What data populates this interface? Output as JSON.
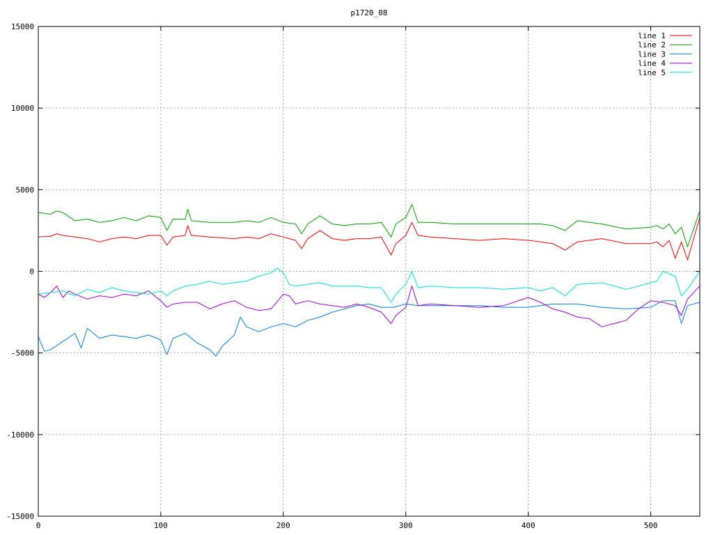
{
  "chart_data": {
    "type": "line",
    "title": "p1720_08",
    "xlim": [
      0,
      540
    ],
    "ylim": [
      -15000,
      15000
    ],
    "x_ticks": [
      0,
      100,
      200,
      300,
      400,
      500
    ],
    "y_ticks": [
      -15000,
      -10000,
      -5000,
      0,
      5000,
      10000,
      15000
    ],
    "x_tick_labels": [
      "0",
      "100",
      "200",
      "300",
      "400",
      "500"
    ],
    "y_tick_labels": [
      "-15000",
      "-10000",
      "-5000",
      "0",
      "5000",
      "10000",
      "15000"
    ],
    "grid": true,
    "legend_position": "top-right",
    "series": [
      {
        "name": "line 1",
        "color": "#ff0000",
        "x": [
          0,
          10,
          15,
          20,
          30,
          40,
          50,
          60,
          70,
          80,
          90,
          100,
          105,
          110,
          120,
          122,
          125,
          140,
          160,
          170,
          180,
          190,
          200,
          210,
          215,
          220,
          230,
          240,
          250,
          260,
          270,
          280,
          288,
          292,
          300,
          305,
          310,
          320,
          340,
          360,
          380,
          400,
          410,
          420,
          430,
          440,
          460,
          480,
          500,
          505,
          510,
          515,
          520,
          525,
          530,
          540
        ],
        "values": [
          2100,
          2150,
          2300,
          2200,
          2100,
          2000,
          1800,
          2000,
          2100,
          2000,
          2200,
          2200,
          1600,
          2100,
          2200,
          2800,
          2200,
          2100,
          2000,
          2100,
          2000,
          2300,
          2100,
          1900,
          1400,
          2000,
          2500,
          2000,
          1900,
          2000,
          2000,
          2100,
          1000,
          1700,
          2200,
          3000,
          2200,
          2100,
          2000,
          1900,
          2000,
          1900,
          1800,
          1700,
          1300,
          1800,
          2000,
          1700,
          1700,
          1800,
          1500,
          1900,
          800,
          1800,
          700,
          3300
        ]
      },
      {
        "name": "line 2",
        "color": "#00a000",
        "x": [
          0,
          10,
          15,
          20,
          30,
          40,
          50,
          60,
          70,
          80,
          90,
          100,
          105,
          110,
          120,
          122,
          125,
          140,
          160,
          170,
          180,
          190,
          200,
          210,
          215,
          220,
          230,
          240,
          250,
          260,
          270,
          280,
          288,
          292,
          300,
          305,
          310,
          320,
          340,
          360,
          380,
          400,
          410,
          420,
          430,
          440,
          460,
          480,
          500,
          505,
          510,
          515,
          520,
          525,
          530,
          540
        ],
        "values": [
          3600,
          3500,
          3700,
          3600,
          3100,
          3200,
          3000,
          3100,
          3300,
          3100,
          3400,
          3300,
          2500,
          3200,
          3200,
          3800,
          3100,
          3000,
          3000,
          3100,
          3000,
          3300,
          3000,
          2900,
          2300,
          2900,
          3400,
          2900,
          2800,
          2900,
          2900,
          3000,
          2100,
          2900,
          3300,
          4100,
          3000,
          3000,
          2900,
          2900,
          2900,
          2900,
          2900,
          2800,
          2500,
          3100,
          2900,
          2600,
          2700,
          2800,
          2600,
          2900,
          2300,
          2700,
          1500,
          3700
        ]
      },
      {
        "name": "line 3",
        "color": "#0080e0",
        "x": [
          0,
          5,
          10,
          20,
          30,
          35,
          40,
          50,
          60,
          70,
          80,
          90,
          100,
          105,
          110,
          120,
          130,
          140,
          145,
          150,
          160,
          165,
          170,
          180,
          190,
          200,
          210,
          220,
          230,
          240,
          250,
          260,
          270,
          280,
          290,
          300,
          310,
          320,
          340,
          360,
          380,
          400,
          420,
          440,
          460,
          480,
          500,
          510,
          520,
          525,
          530,
          540
        ],
        "values": [
          -4000,
          -4900,
          -4800,
          -4300,
          -3800,
          -4700,
          -3500,
          -4100,
          -3900,
          -4000,
          -4100,
          -3900,
          -4200,
          -5100,
          -4100,
          -3800,
          -4400,
          -4800,
          -5200,
          -4600,
          -3900,
          -2800,
          -3400,
          -3700,
          -3400,
          -3200,
          -3400,
          -3000,
          -2800,
          -2500,
          -2300,
          -2100,
          -2000,
          -2200,
          -2200,
          -2000,
          -2100,
          -2100,
          -2100,
          -2100,
          -2200,
          -2200,
          -2000,
          -2000,
          -2200,
          -2300,
          -2200,
          -1800,
          -1800,
          -3200,
          -2100,
          -1900
        ]
      },
      {
        "name": "line 4",
        "color": "#a000e0",
        "x": [
          0,
          5,
          10,
          15,
          20,
          25,
          30,
          40,
          50,
          60,
          70,
          80,
          90,
          100,
          105,
          110,
          120,
          130,
          140,
          150,
          160,
          170,
          180,
          190,
          200,
          205,
          210,
          220,
          230,
          240,
          250,
          260,
          270,
          280,
          288,
          292,
          300,
          305,
          310,
          320,
          340,
          360,
          380,
          400,
          410,
          420,
          430,
          440,
          450,
          460,
          470,
          480,
          490,
          500,
          510,
          520,
          525,
          530,
          540
        ],
        "values": [
          -1400,
          -1600,
          -1300,
          -900,
          -1600,
          -1200,
          -1400,
          -1700,
          -1500,
          -1600,
          -1400,
          -1500,
          -1200,
          -1800,
          -2200,
          -2000,
          -1900,
          -1900,
          -2300,
          -2000,
          -1800,
          -2200,
          -2400,
          -2300,
          -1400,
          -1500,
          -2000,
          -1800,
          -2000,
          -2100,
          -2200,
          -2000,
          -2200,
          -2500,
          -3200,
          -2700,
          -2200,
          -900,
          -2100,
          -2000,
          -2100,
          -2200,
          -2100,
          -1600,
          -1900,
          -2300,
          -2500,
          -2800,
          -2900,
          -3400,
          -3200,
          -3000,
          -2300,
          -1800,
          -1900,
          -2100,
          -2700,
          -1700,
          -900
        ]
      },
      {
        "name": "line 5",
        "color": "#00e0e0",
        "x": [
          0,
          10,
          20,
          30,
          40,
          50,
          60,
          70,
          80,
          90,
          100,
          105,
          110,
          120,
          130,
          140,
          150,
          160,
          170,
          180,
          190,
          195,
          200,
          205,
          210,
          220,
          230,
          240,
          250,
          260,
          270,
          280,
          288,
          292,
          300,
          305,
          310,
          320,
          340,
          360,
          380,
          400,
          410,
          420,
          430,
          440,
          460,
          480,
          500,
          505,
          510,
          520,
          525,
          530,
          540
        ],
        "values": [
          -1400,
          -1300,
          -1200,
          -1500,
          -1100,
          -1300,
          -1000,
          -1200,
          -1300,
          -1400,
          -1200,
          -1500,
          -1200,
          -900,
          -800,
          -600,
          -800,
          -700,
          -600,
          -300,
          -100,
          200,
          -100,
          -800,
          -900,
          -800,
          -700,
          -900,
          -900,
          -900,
          -1000,
          -1000,
          -1900,
          -1400,
          -800,
          0,
          -1000,
          -900,
          -1000,
          -1000,
          -1100,
          -1000,
          -1200,
          -1000,
          -1500,
          -800,
          -700,
          -1100,
          -700,
          -600,
          0,
          -300,
          -1500,
          -1100,
          0
        ]
      }
    ]
  }
}
